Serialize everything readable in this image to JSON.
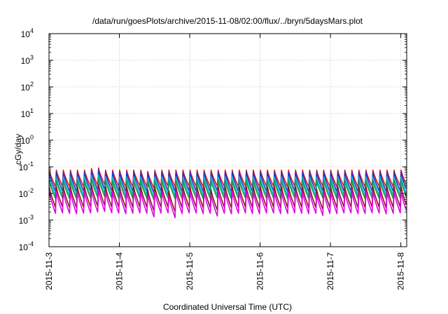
{
  "chart_data": {
    "type": "line",
    "title": "/data/run/goesPlots/archive/2015-11-08/02:00/flux/../bryn/5daysMars.plot",
    "xlabel": "Coordinated Universal Time (UTC)",
    "ylabel": "cGy/day",
    "yscale": "log",
    "ylim": [
      "1e-4",
      "1e4"
    ],
    "y_ticks": [
      {
        "exp": -4,
        "base": "10",
        "sup": "-4"
      },
      {
        "exp": -3,
        "base": "10",
        "sup": "-3"
      },
      {
        "exp": -2,
        "base": "10",
        "sup": "-2"
      },
      {
        "exp": -1,
        "base": "10",
        "sup": "-1"
      },
      {
        "exp": 0,
        "base": "10",
        "sup": "0"
      },
      {
        "exp": 1,
        "base": "10",
        "sup": "1"
      },
      {
        "exp": 2,
        "base": "10",
        "sup": "2"
      },
      {
        "exp": 3,
        "base": "10",
        "sup": "3"
      },
      {
        "exp": 4,
        "base": "10",
        "sup": "4"
      }
    ],
    "xlim": [
      "2015-11-03",
      "2015-11-08 02:00"
    ],
    "x_ticks": [
      "2015-11-3",
      "2015-11-4",
      "2015-11-5",
      "2015-11-6",
      "2015-11-7",
      "2015-11-8"
    ],
    "grid": true,
    "spin_period_days": 0.1
  },
  "series_style": [
    {
      "color": "#e8101c",
      "peak": 0.075,
      "min": 0.018
    },
    {
      "color": "#2233d8",
      "peak": 0.062,
      "min": 0.012
    },
    {
      "color": "#00b8c0",
      "peak": 0.042,
      "min": 0.0085
    },
    {
      "color": "#12a048",
      "peak": 0.03,
      "min": 0.0065
    },
    {
      "color": "#8a1020",
      "peak": 0.018,
      "min": 0.003
    },
    {
      "color": "#e000e0",
      "peak": 0.012,
      "min": 0.0018
    }
  ]
}
